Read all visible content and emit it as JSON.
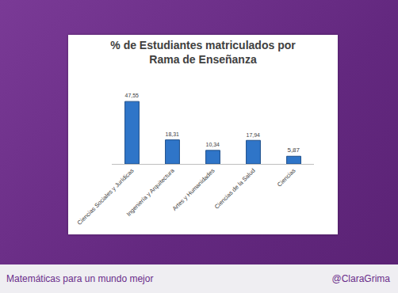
{
  "chart_data": {
    "type": "bar",
    "title": "% de Estudiantes matriculados por\nRama de Enseñanza",
    "categories": [
      "Ciencias Sociales y Jurídicas",
      "Ingeniería y Arquitectura",
      "Artes y Humanidades",
      "Ciencias de la Salud",
      "Ciencias"
    ],
    "values": [
      47.55,
      18.31,
      10.34,
      17.94,
      5.87
    ],
    "value_labels": [
      "47,55",
      "18,31",
      "10,34",
      "17,94",
      "5,87"
    ],
    "color": "#2f75c8",
    "data_labels": true,
    "tick_labels": "x",
    "grid": false
  },
  "footer": {
    "left": "Matemáticas para un mundo mejor",
    "right": "@ClaraGrima"
  }
}
